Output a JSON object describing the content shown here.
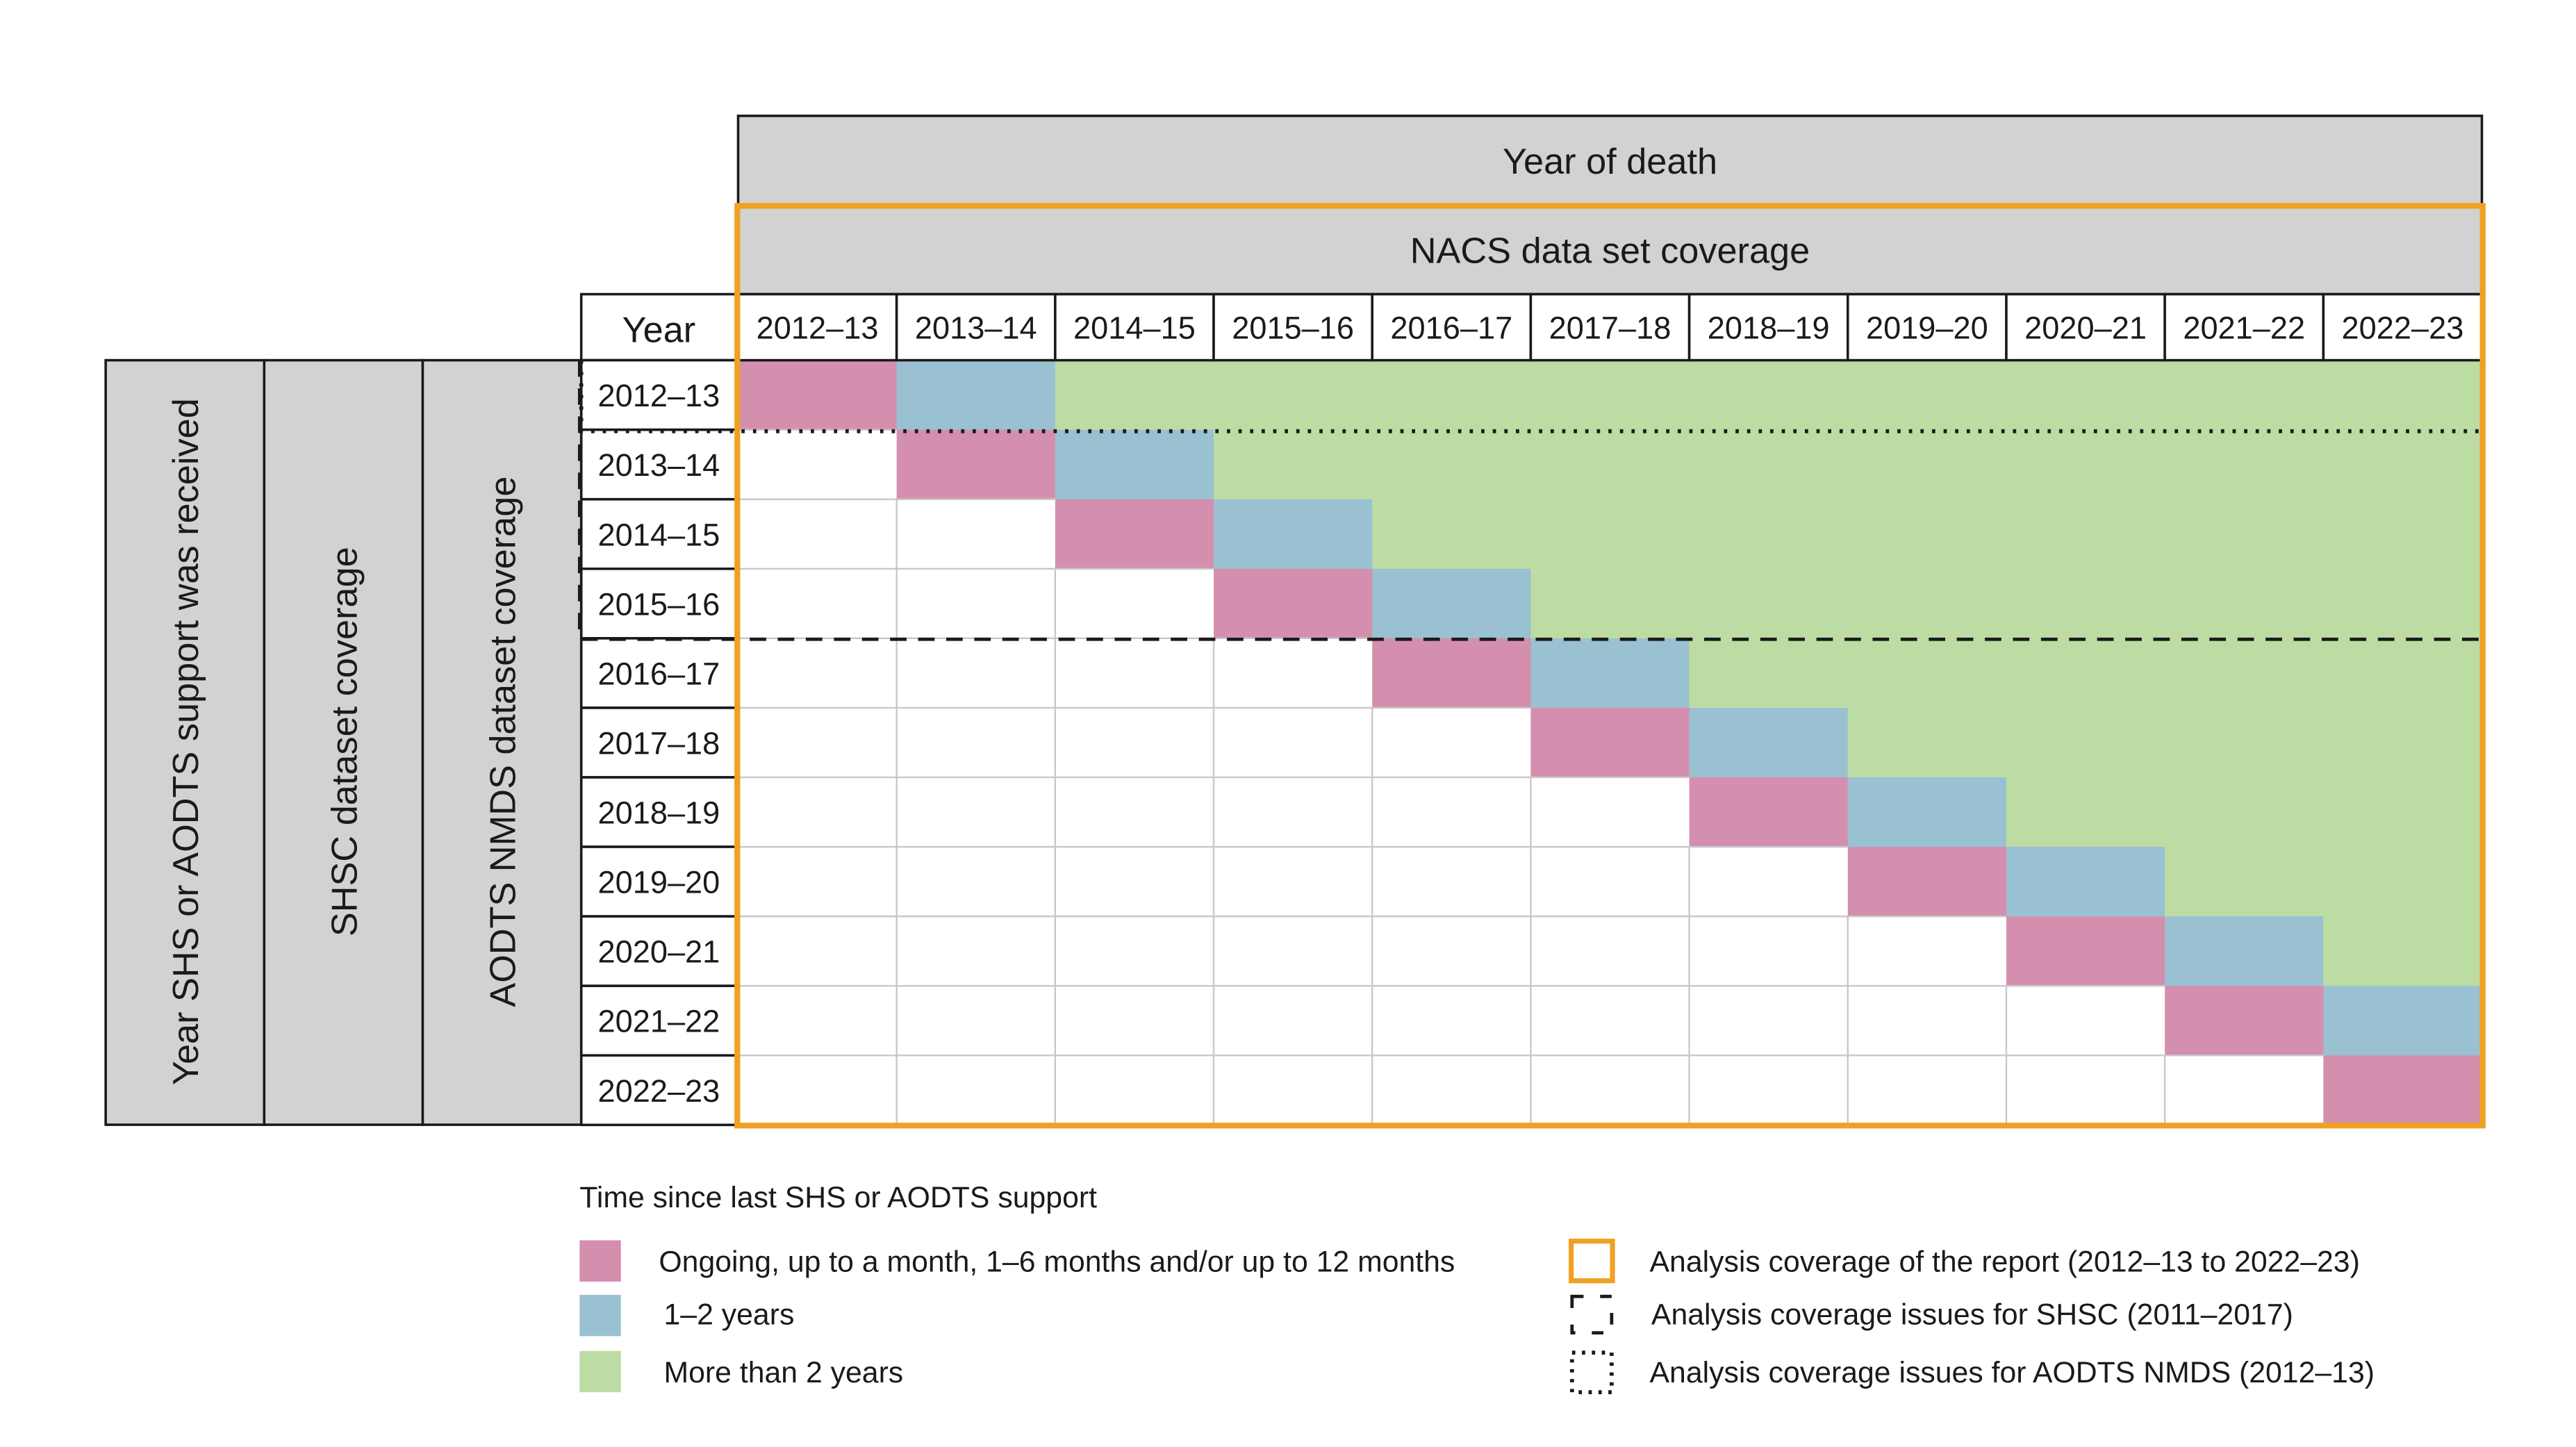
{
  "header": {
    "year_of_death": "Year of death",
    "nacs_coverage": "NACS data set coverage",
    "year_label": "Year"
  },
  "side_labels": {
    "support_year": "Year SHS or AODTS support was received",
    "shsc_coverage": "SHSC dataset coverage",
    "aodts_coverage": "AODTS NMDS dataset coverage"
  },
  "years": [
    "2012–13",
    "2013–14",
    "2014–15",
    "2015–16",
    "2016–17",
    "2017–18",
    "2018–19",
    "2019–20",
    "2020–21",
    "2021–22",
    "2022–23"
  ],
  "colors": {
    "pink": "#d58fae",
    "blue": "#99c1d1",
    "green": "#bcdca3",
    "header_gray": "#d1d3d2",
    "orange": "#f0a023"
  },
  "legend": {
    "title": "Time since last SHS or AODTS support",
    "pink": "Ongoing, up to a month, 1–6 months and/or up to 12 months",
    "blue": "1–2 years",
    "green": "More than 2 years",
    "orange_box": "Analysis coverage of the report (2012–13 to 2022–23)",
    "dashed_box": "Analysis coverage issues for SHSC (2011–2017)",
    "dotted_box": "Analysis coverage issues for AODTS NMDS (2012–13)"
  }
}
